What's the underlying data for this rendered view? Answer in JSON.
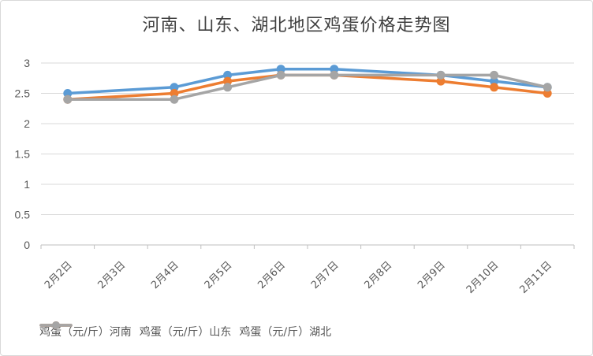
{
  "chart_data": {
    "type": "line",
    "title": "河南、山东、湖北地区鸡蛋价格走势图",
    "categories": [
      "2月2日",
      "2月3日",
      "2月4日",
      "2月5日",
      "2月6日",
      "2月7日",
      "2月8日",
      "2月9日",
      "2月10日",
      "2月11日"
    ],
    "series": [
      {
        "name": "鸡蛋（元/斤）河南",
        "color": "#5b9bd5",
        "values": [
          2.5,
          null,
          2.6,
          2.8,
          2.9,
          2.9,
          null,
          2.8,
          2.7,
          2.6
        ]
      },
      {
        "name": "鸡蛋（元/斤）山东",
        "color": "#ed7d31",
        "values": [
          2.4,
          null,
          2.5,
          2.7,
          2.8,
          2.8,
          null,
          2.7,
          2.6,
          2.5
        ]
      },
      {
        "name": "鸡蛋（元/斤）湖北",
        "color": "#a5a5a5",
        "values": [
          2.4,
          null,
          2.4,
          2.6,
          2.8,
          2.8,
          null,
          2.8,
          2.8,
          2.6
        ]
      }
    ],
    "ylim": [
      0,
      3
    ],
    "yticks": [
      "0",
      "0.5",
      "1",
      "1.5",
      "2",
      "2.5",
      "3"
    ],
    "grid": true,
    "legend_position": "bottom"
  }
}
